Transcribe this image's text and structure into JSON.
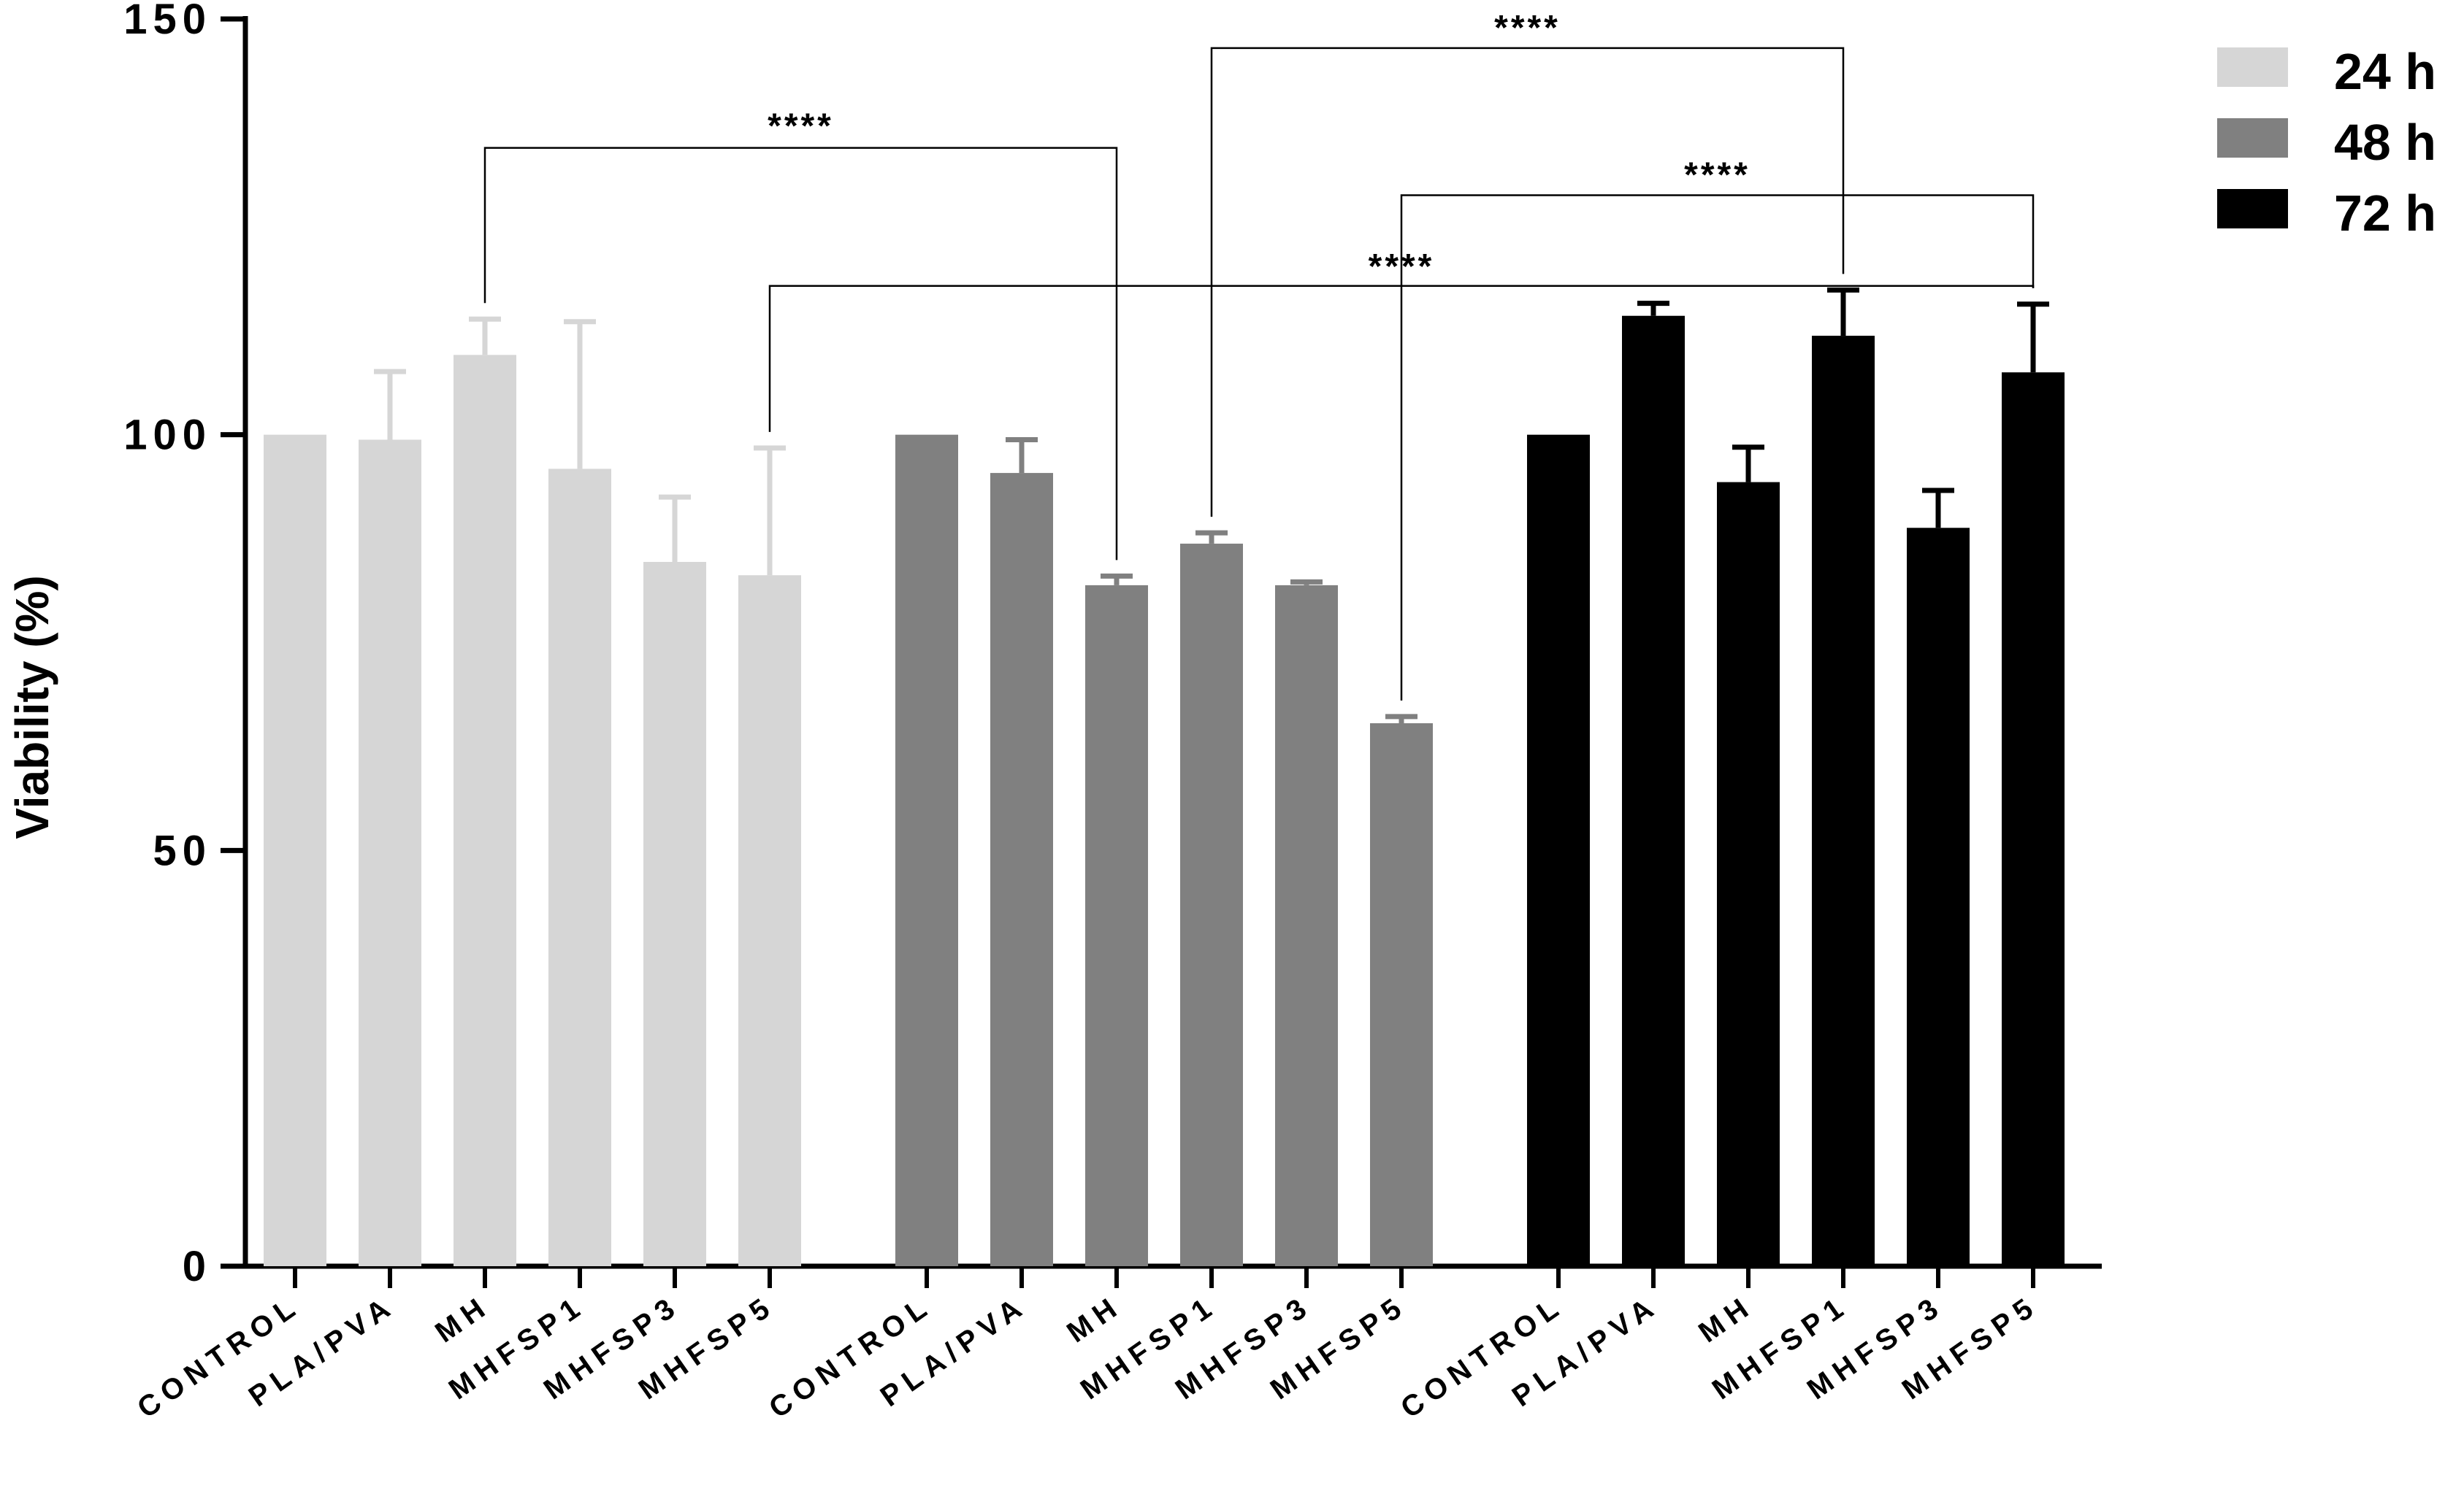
{
  "chart_data": {
    "type": "bar",
    "title": "",
    "ylabel": "Viability (%)",
    "xlabel": "",
    "ylim": [
      0,
      150
    ],
    "yticks": [
      0,
      50,
      100,
      150
    ],
    "colors": {
      "24 h": "#d6d6d6",
      "48 h": "#808080",
      "72 h": "#000000"
    },
    "groups": [
      {
        "name": "24 h",
        "categories": [
          "CONTROL",
          "PLA/PVA",
          "MH",
          "MHFSP1",
          "MHFSP3",
          "MHFSP5"
        ],
        "values": [
          100,
          99.4,
          109.6,
          95.9,
          84.7,
          83.1
        ],
        "errors": [
          0,
          8.2,
          4.3,
          17.7,
          7.8,
          15.3
        ]
      },
      {
        "name": "48 h",
        "categories": [
          "CONTROL",
          "PLA/PVA",
          "MH",
          "MHFSP1",
          "MHFSP3",
          "MHFSP5"
        ],
        "values": [
          100,
          95.4,
          81.9,
          86.9,
          81.9,
          65.3
        ],
        "errors": [
          0,
          4.0,
          1.1,
          1.3,
          0.4,
          0.8
        ]
      },
      {
        "name": "72 h",
        "categories": [
          "CONTROL",
          "PLA/PVA",
          "MH",
          "MHFSP1",
          "MHFSP3",
          "MHFSP5"
        ],
        "values": [
          100,
          114.3,
          94.3,
          111.9,
          88.8,
          107.5
        ],
        "errors": [
          0,
          1.5,
          4.2,
          5.5,
          4.5,
          8.2
        ]
      }
    ],
    "legend": {
      "entries": [
        "24 h",
        "48 h",
        "72 h"
      ],
      "position": "top-right"
    },
    "significance": [
      {
        "label": "****",
        "from": {
          "group": 0,
          "bar": 2
        },
        "to": {
          "group": 1,
          "bar": 2
        },
        "y": 134.5,
        "label_x": [
          0,
          4.85
        ],
        "label_y": 137.5
      },
      {
        "label": "****",
        "from": {
          "group": 1,
          "bar": 3
        },
        "to": {
          "group": 2,
          "bar": 3
        },
        "y": 146.5,
        "label_x": [
          1,
          3.75
        ],
        "label_y": 149.3
      },
      {
        "label": "****",
        "from": {
          "group": 1,
          "bar": 5
        },
        "to": {
          "group": 2,
          "bar": 5
        },
        "y": 128.8,
        "label_x": [
          2,
          2.2
        ],
        "label_y": 131.6
      },
      {
        "label": "****",
        "from": {
          "group": 0,
          "bar": 5
        },
        "to": {
          "group": 2,
          "bar": 5
        },
        "y": 117.9,
        "label_x": [
          1,
          4.6
        ],
        "label_y": 120.6
      }
    ]
  }
}
